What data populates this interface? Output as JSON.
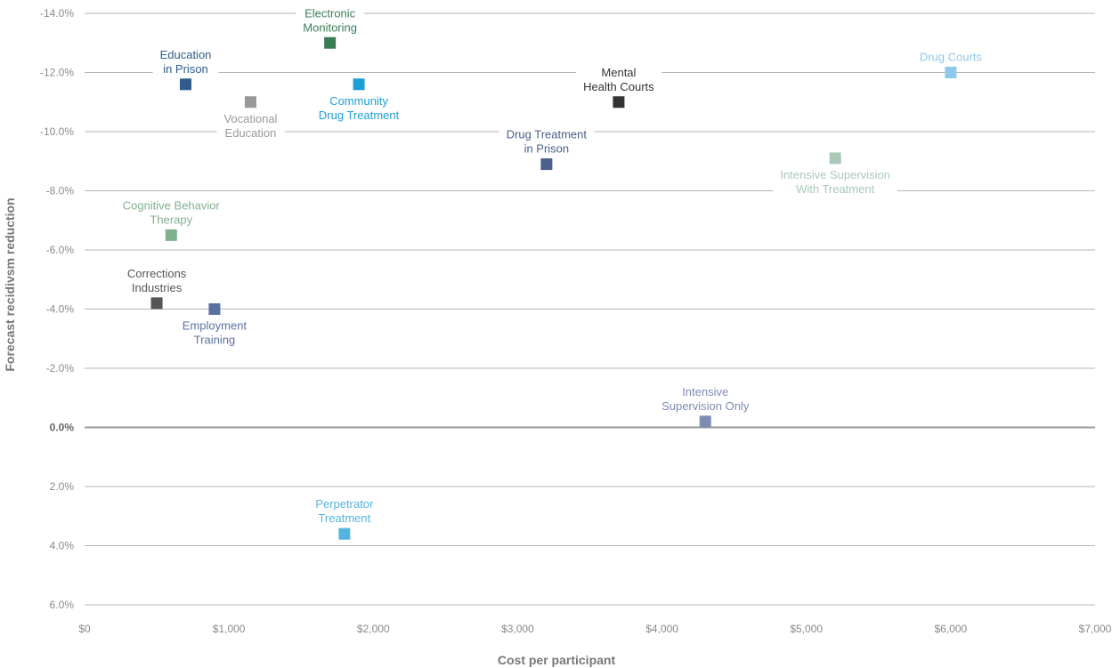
{
  "chart_data": {
    "type": "scatter",
    "title": "",
    "xlabel": "Cost per participant",
    "ylabel": "Forecast recidivsm reduction",
    "xlim": [
      0,
      7000
    ],
    "ylim": [
      -14,
      6
    ],
    "y_axis_inverted": true,
    "grid": true,
    "x_ticks": [
      "$0",
      "$1,000",
      "$2,000",
      "$3,000",
      "$4,000",
      "$5,000",
      "$6,000",
      "$7,000"
    ],
    "y_ticks": [
      "-14.0%",
      "-12.0%",
      "-10.0%",
      "-8.0%",
      "-6.0%",
      "-4.0%",
      "-2.0%",
      "0.0%",
      "2.0%",
      "4.0%",
      "6.0%"
    ],
    "points": [
      {
        "name": "Electronic Monitoring",
        "label_lines": [
          "Electronic",
          "Monitoring"
        ],
        "x": 1700,
        "y": -13.0,
        "color": "#3a7d55",
        "label_pos": "above"
      },
      {
        "name": "Education in Prison",
        "label_lines": [
          "Education",
          "in Prison"
        ],
        "x": 700,
        "y": -11.6,
        "color": "#2f5b8e",
        "label_pos": "above"
      },
      {
        "name": "Vocational Education",
        "label_lines": [
          "Vocational",
          "Education"
        ],
        "x": 1150,
        "y": -11.0,
        "color": "#999999",
        "label_pos": "below"
      },
      {
        "name": "Community Drug Treatment",
        "label_lines": [
          "Community",
          "Drug Treatment"
        ],
        "x": 1900,
        "y": -11.6,
        "color": "#1a9fd6",
        "label_pos": "below"
      },
      {
        "name": "Mental Health Courts",
        "label_lines": [
          "Mental",
          "Health Courts"
        ],
        "x": 3700,
        "y": -11.0,
        "color": "#333333",
        "label_pos": "above"
      },
      {
        "name": "Drug Courts",
        "label_lines": [
          "Drug Courts"
        ],
        "x": 6000,
        "y": -12.0,
        "color": "#8ec9eb",
        "label_pos": "above"
      },
      {
        "name": "Drug Treatment in Prison",
        "label_lines": [
          "Drug Treatment",
          "in Prison"
        ],
        "x": 3200,
        "y": -8.9,
        "color": "#4a5f8a",
        "label_pos": "above"
      },
      {
        "name": "Intensive Supervision With Treatment",
        "label_lines": [
          "Intensive Supervision",
          "With Treatment"
        ],
        "x": 5200,
        "y": -9.1,
        "color": "#a9c9b8",
        "label_pos": "below"
      },
      {
        "name": "Cognitive Behavior Therapy",
        "label_lines": [
          "Cognitive Behavior",
          "Therapy"
        ],
        "x": 600,
        "y": -6.5,
        "color": "#7fb08f",
        "label_pos": "above"
      },
      {
        "name": "Corrections Industries",
        "label_lines": [
          "Corrections",
          "Industries"
        ],
        "x": 500,
        "y": -4.2,
        "color": "#555555",
        "label_pos": "above"
      },
      {
        "name": "Employment Training",
        "label_lines": [
          "Employment",
          "Training"
        ],
        "x": 900,
        "y": -4.0,
        "color": "#5a71a3",
        "label_pos": "below"
      },
      {
        "name": "Intensive Supervision Only",
        "label_lines": [
          "Intensive",
          "Supervision Only"
        ],
        "x": 4300,
        "y": -0.2,
        "color": "#7d8cb3",
        "label_pos": "above"
      },
      {
        "name": "Perpetrator Treatment",
        "label_lines": [
          "Perpetrator",
          "Treatment"
        ],
        "x": 1800,
        "y": 3.6,
        "color": "#55b3e0",
        "label_pos": "above"
      }
    ]
  }
}
